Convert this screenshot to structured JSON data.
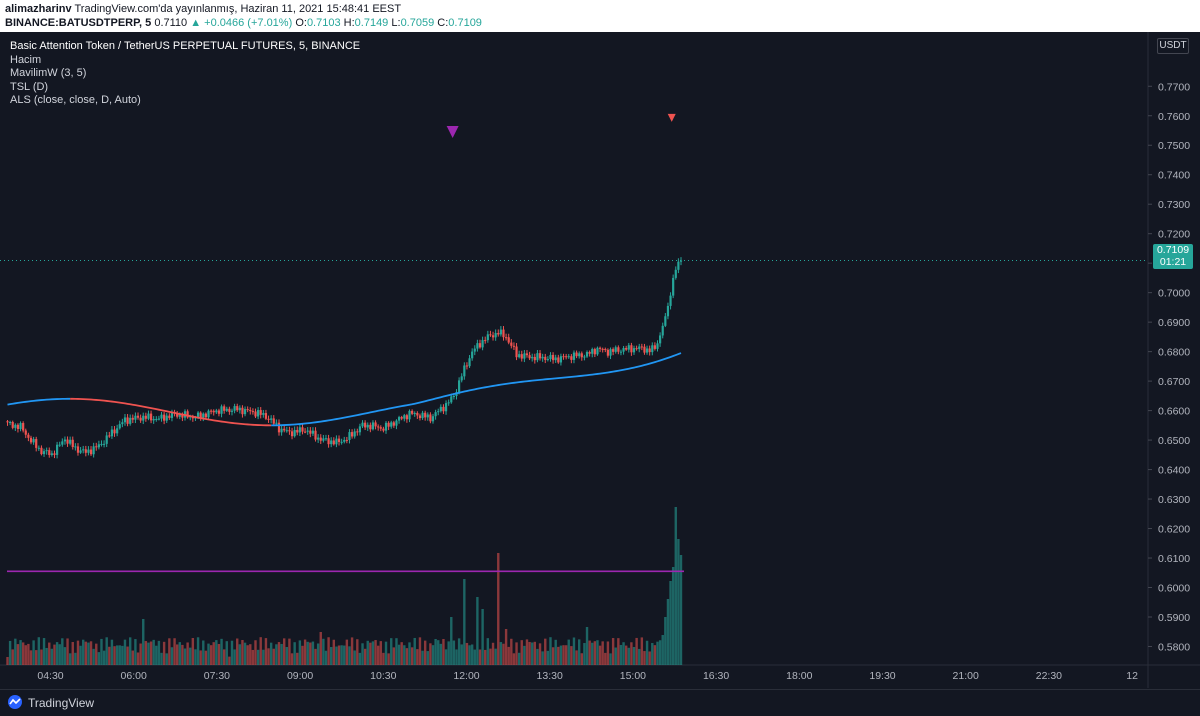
{
  "header": {
    "author": "alimazharinv",
    "published": "TradingView.com'da yayınlanmış, Haziran 11, 2021 15:48:41 EEST",
    "symbol": "BINANCE:BATUSDTPERP, 5",
    "last": "0.7110",
    "change": "▲ +0.0466 (+7.01%)",
    "o_label": "O:",
    "o": "0.7103",
    "h_label": "H:",
    "h": "0.7149",
    "l_label": "L:",
    "l": "0.7059",
    "c_label": "C:",
    "c": "0.7109"
  },
  "legend": {
    "main": "Basic Attention Token / TetherUS PERPETUAL FUTURES, 5, BINANCE",
    "items": [
      "Hacim",
      "MavilimW (3, 5)",
      "TSL (D)",
      "ALS (close, close, D, Auto)"
    ]
  },
  "price_box": {
    "price": "0.7109",
    "countdown": "01:21"
  },
  "currency": "USDT",
  "footer": {
    "brand": "TradingView"
  },
  "colors": {
    "up": "#26a69a",
    "down": "#ef5350",
    "bg": "#131722",
    "ma_red": "#ef5350",
    "ma_blue": "#2196f3",
    "purple": "#9c27b0"
  },
  "chart_data": {
    "type": "candlestick",
    "y_ticks": [
      "0.7700",
      "0.7600",
      "0.7500",
      "0.7400",
      "0.7300",
      "0.7200",
      "0.7100",
      "0.7000",
      "0.6900",
      "0.6800",
      "0.6700",
      "0.6600",
      "0.6500",
      "0.6400",
      "0.6300",
      "0.6200",
      "0.6100",
      "0.6000",
      "0.5900",
      "0.5800"
    ],
    "x_ticks": [
      "04:30",
      "06:00",
      "07:30",
      "09:00",
      "10:30",
      "12:00",
      "13:30",
      "15:00",
      "16:30",
      "18:00",
      "19:30",
      "21:00",
      "22:30",
      "12"
    ],
    "ylim": [
      0.5765,
      0.778
    ],
    "volume_threshold": 0.6055,
    "signals": [
      {
        "time": "11:45",
        "price": 0.7545,
        "type": "down-arrow",
        "color": "#9c27b0"
      },
      {
        "time": "15:42",
        "price": 0.7593,
        "type": "down-arrow",
        "color": "#ef5350"
      }
    ]
  }
}
